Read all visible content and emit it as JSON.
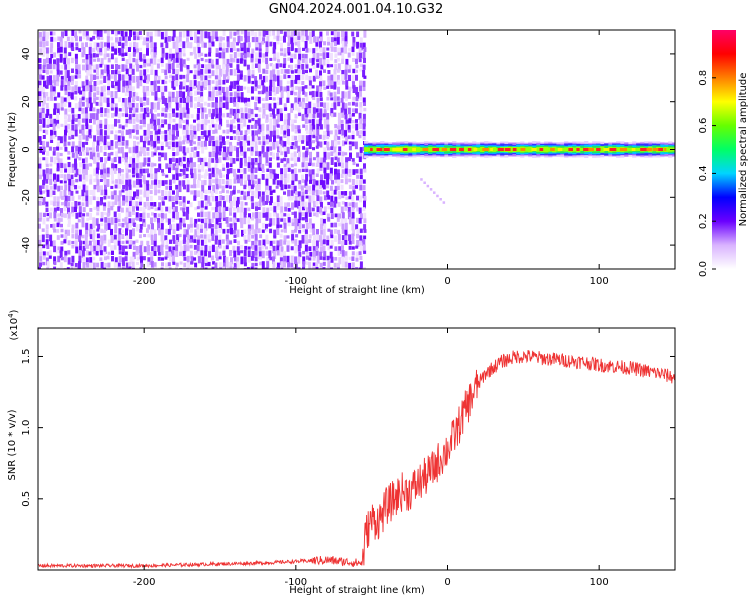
{
  "title": "GN04.2024.001.04.10.G32",
  "chart_data": [
    {
      "type": "heatmap",
      "xlabel": "Height of straight line (km)",
      "ylabel": "Frequency (Hz)",
      "xlim": [
        -270,
        150
      ],
      "ylim": [
        -50,
        50
      ],
      "x_ticks": [
        -200,
        -100,
        0,
        100
      ],
      "x_tick_labels": [
        "-200",
        "-100",
        "0",
        "100"
      ],
      "y_ticks": [
        -40,
        -20,
        0,
        20,
        40
      ],
      "y_tick_labels": [
        "-40",
        "-20",
        "0",
        "20",
        "40"
      ],
      "colorbar": {
        "label": "Normalized spectral amplitude",
        "range": [
          0,
          1
        ],
        "ticks": [
          0.0,
          0.2,
          0.4,
          0.6,
          0.8
        ],
        "tick_labels": [
          "0.0",
          "0.2",
          "0.4",
          "0.6",
          "0.8"
        ],
        "colors": [
          "#ffffff",
          "#d9b3ff",
          "#6a00ff",
          "#0000ff",
          "#00d4ff",
          "#00ff66",
          "#66ff00",
          "#ffff00",
          "#ff8000",
          "#ff0000",
          "#ff0066"
        ]
      },
      "regions": [
        {
          "x_range": [
            -270,
            -55
          ],
          "description_level": "broadband noise",
          "amplitude_range": [
            0.0,
            0.15
          ]
        },
        {
          "x_range": [
            -55,
            150
          ],
          "frequency_hz": 0,
          "bandwidth_hz": [
            -3,
            3
          ],
          "peak_amplitude": 0.9
        }
      ]
    },
    {
      "type": "line",
      "xlabel": "Height of straight line (km)",
      "ylabel": "SNR (10 * v/v)",
      "y_scale_label": "(x10",
      "y_scale_exponent": "4",
      "xlim": [
        -270,
        150
      ],
      "ylim": [
        0,
        1.7
      ],
      "x_ticks": [
        -200,
        -100,
        0,
        100
      ],
      "x_tick_labels": [
        "-200",
        "-100",
        "0",
        "100"
      ],
      "y_ticks": [
        0.5,
        1.0,
        1.5
      ],
      "y_tick_labels": [
        "0.5",
        "1.0",
        "1.5"
      ],
      "series": [
        {
          "color": "#ee3333",
          "x": [
            -270,
            -200,
            -120,
            -80,
            -60,
            -56,
            -54,
            -50,
            -45,
            -40,
            -35,
            -30,
            -25,
            -20,
            -15,
            -10,
            -5,
            0,
            5,
            10,
            15,
            20,
            25,
            30,
            35,
            40,
            45,
            50,
            55,
            60,
            70,
            80,
            90,
            100,
            110,
            120,
            130,
            140,
            150
          ],
          "y": [
            0.03,
            0.03,
            0.05,
            0.07,
            0.05,
            0.05,
            0.25,
            0.35,
            0.35,
            0.45,
            0.5,
            0.55,
            0.55,
            0.6,
            0.65,
            0.7,
            0.78,
            0.85,
            0.95,
            1.08,
            1.2,
            1.3,
            1.38,
            1.42,
            1.46,
            1.48,
            1.5,
            1.5,
            1.5,
            1.49,
            1.48,
            1.47,
            1.46,
            1.44,
            1.43,
            1.42,
            1.4,
            1.38,
            1.35
          ]
        }
      ]
    }
  ]
}
